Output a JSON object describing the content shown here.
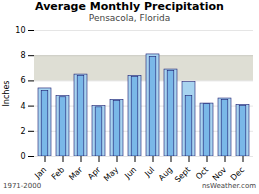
{
  "chart_data": {
    "type": "bar",
    "title": "Average Monthly Precipitation",
    "subtitle": "Pensacola, Florida",
    "ylabel": "Inches",
    "categories": [
      "Jan",
      "Feb",
      "Mar",
      "Apr",
      "May",
      "Jun",
      "Jul",
      "Aug",
      "Sept",
      "Oct",
      "Nov",
      "Dec"
    ],
    "series": [
      {
        "color": "#a8d4f0",
        "values": [
          5.4,
          4.8,
          6.5,
          4.0,
          4.5,
          6.4,
          8.1,
          6.9,
          5.9,
          4.2,
          4.6,
          4.1
        ]
      },
      {
        "color": "#7ab8e8",
        "values": [
          5.2,
          4.7,
          6.4,
          3.9,
          4.4,
          6.3,
          7.9,
          6.8,
          4.8,
          4.15,
          4.5,
          4.0
        ]
      }
    ],
    "edge_color": "#1a1a6e",
    "highlight": {
      "values": [
        6,
        8
      ],
      "color": "#deded4"
    },
    "ylim": [
      0,
      10
    ],
    "yticks": [
      0,
      2,
      4,
      6,
      8,
      10
    ],
    "grid": true,
    "caption_left": "1971-2000",
    "caption_right": "nsWeather.com"
  }
}
